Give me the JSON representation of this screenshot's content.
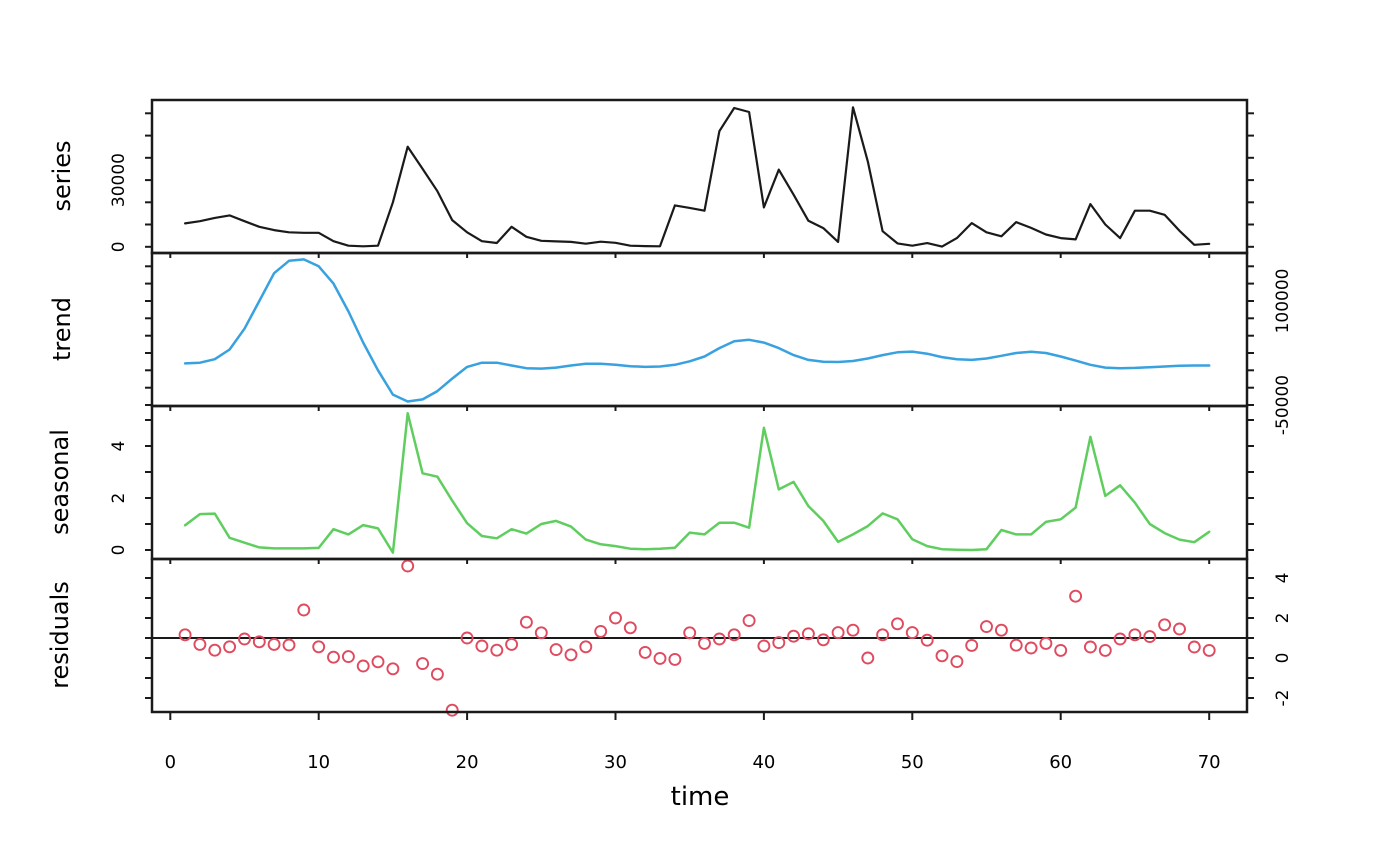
{
  "figure_title": "",
  "axis": {
    "xlabel": "time",
    "x_ticks": [
      0,
      10,
      20,
      30,
      40,
      50,
      60,
      70
    ],
    "xlim": [
      -1.23,
      72.55
    ]
  },
  "colors": {
    "series": "#1A1A1A",
    "trend": "#38A1DF",
    "seasonal": "#5FCE5F",
    "residuals": "#E04A5F",
    "frame": "#1A1A1A",
    "background": "#FFFFFF"
  },
  "chart_data": {
    "type": "line",
    "title": "",
    "xlabel": "time",
    "x_start": 1,
    "x": [
      1,
      2,
      3,
      4,
      5,
      6,
      7,
      8,
      9,
      10,
      11,
      12,
      13,
      14,
      15,
      16,
      17,
      18,
      19,
      20,
      21,
      22,
      23,
      24,
      25,
      26,
      27,
      28,
      29,
      30,
      31,
      32,
      33,
      34,
      35,
      36,
      37,
      38,
      39,
      40,
      41,
      42,
      43,
      44,
      45,
      46,
      47,
      48,
      49,
      50,
      51,
      52,
      53,
      54,
      55,
      56,
      57,
      58,
      59,
      60,
      61,
      62,
      63,
      64,
      65,
      66,
      67,
      68,
      69,
      70
    ],
    "xlim": [
      -1.23,
      72.55
    ],
    "x_ticks": [
      0,
      10,
      20,
      30,
      40,
      50,
      60,
      70
    ],
    "panels": [
      {
        "label": "series",
        "type": "line",
        "axis_side": "left",
        "ylim": [
          -2800,
          66000
        ],
        "yticks": [
          0,
          10000,
          20000,
          30000,
          40000,
          50000,
          60000
        ],
        "ytick_labels": [
          0,
          30000
        ],
        "values": [
          10500,
          11500,
          13000,
          14100,
          11500,
          9000,
          7500,
          6500,
          6300,
          6300,
          2500,
          500,
          200,
          500,
          20000,
          45000,
          35000,
          25000,
          12000,
          6500,
          2500,
          1700,
          9000,
          4500,
          2700,
          2400,
          2200,
          1400,
          2300,
          1800,
          500,
          300,
          200,
          18600,
          17500,
          16200,
          52000,
          62400,
          60600,
          17700,
          34650,
          23400,
          11700,
          8400,
          2200,
          62700,
          38400,
          7000,
          1500,
          500,
          1650,
          100,
          3900,
          10650,
          6500,
          4700,
          11100,
          8500,
          5500,
          3900,
          3300,
          19200,
          10000,
          3900,
          16200,
          16200,
          14400,
          7200,
          900,
          1350
        ]
      },
      {
        "label": "trend",
        "type": "line",
        "axis_side": "right",
        "ylim": [
          -51450,
          169200
        ],
        "yticks": [
          -50000,
          -25000,
          0,
          25000,
          50000,
          75000,
          100000,
          125000,
          150000
        ],
        "ytick_labels": [
          -50000,
          100000
        ],
        "values": [
          10000,
          11000,
          16000,
          30000,
          60000,
          100000,
          140000,
          158000,
          160000,
          150000,
          125000,
          85000,
          40000,
          0,
          -35000,
          -45000,
          -42000,
          -30000,
          -12000,
          5000,
          11000,
          11000,
          7000,
          3000,
          2500,
          4000,
          7000,
          9500,
          9600,
          8000,
          6000,
          5000,
          5500,
          8000,
          13000,
          20000,
          32000,
          42000,
          44000,
          40000,
          32000,
          22000,
          15000,
          12500,
          12000,
          13500,
          17000,
          22000,
          26000,
          27000,
          24000,
          19000,
          16000,
          15000,
          17000,
          21000,
          25000,
          26800,
          25000,
          20000,
          14000,
          8000,
          4000,
          3000,
          3500,
          4500,
          5500,
          6500,
          7000,
          7000
        ]
      },
      {
        "label": "seasonal",
        "type": "line",
        "axis_side": "left",
        "ylim": [
          -0.346,
          5.54
        ],
        "yticks": [
          0,
          1,
          2,
          3,
          4,
          5
        ],
        "ytick_labels": [
          0,
          2,
          4
        ],
        "values": [
          0.95,
          1.38,
          1.4,
          0.47,
          0.28,
          0.1,
          0.06,
          0.06,
          0.06,
          0.08,
          0.8,
          0.6,
          0.96,
          0.83,
          -0.1,
          5.26,
          2.95,
          2.82,
          1.9,
          1.03,
          0.54,
          0.45,
          0.8,
          0.63,
          1.0,
          1.12,
          0.9,
          0.4,
          0.22,
          0.15,
          0.05,
          0.03,
          0.05,
          0.09,
          0.67,
          0.6,
          1.05,
          1.05,
          0.86,
          4.7,
          2.33,
          2.62,
          1.69,
          1.12,
          0.31,
          0.6,
          0.92,
          1.41,
          1.18,
          0.41,
          0.15,
          0.03,
          0.01,
          0.0,
          0.03,
          0.77,
          0.6,
          0.6,
          1.08,
          1.18,
          1.63,
          4.35,
          2.08,
          2.49,
          1.82,
          1.0,
          0.65,
          0.4,
          0.3,
          0.7
        ]
      },
      {
        "label": "residuals",
        "type": "scatter",
        "axis_side": "right",
        "ref_line": 1.0,
        "ylim": [
          -2.7,
          4.95
        ],
        "yticks": [
          -2,
          -1,
          0,
          1,
          2,
          3,
          4
        ],
        "ytick_labels": [
          -2,
          0,
          2,
          4
        ],
        "values": [
          1.16,
          0.68,
          0.39,
          0.56,
          0.95,
          0.81,
          0.68,
          0.65,
          2.4,
          0.56,
          0.04,
          0.07,
          -0.4,
          -0.19,
          -0.54,
          4.6,
          -0.28,
          -0.81,
          -2.61,
          1.0,
          0.6,
          0.39,
          0.68,
          1.79,
          1.26,
          0.42,
          0.16,
          0.56,
          1.33,
          2.0,
          1.51,
          0.28,
          -0.02,
          -0.07,
          1.26,
          0.73,
          0.95,
          1.16,
          1.87,
          0.6,
          0.77,
          1.09,
          1.21,
          0.91,
          1.27,
          1.39,
          0.0,
          1.16,
          1.71,
          1.27,
          0.89,
          0.11,
          -0.18,
          0.63,
          1.57,
          1.39,
          0.64,
          0.5,
          0.73,
          0.38,
          3.09,
          0.55,
          0.38,
          0.95,
          1.16,
          1.07,
          1.66,
          1.45,
          0.55,
          0.38
        ]
      }
    ]
  }
}
